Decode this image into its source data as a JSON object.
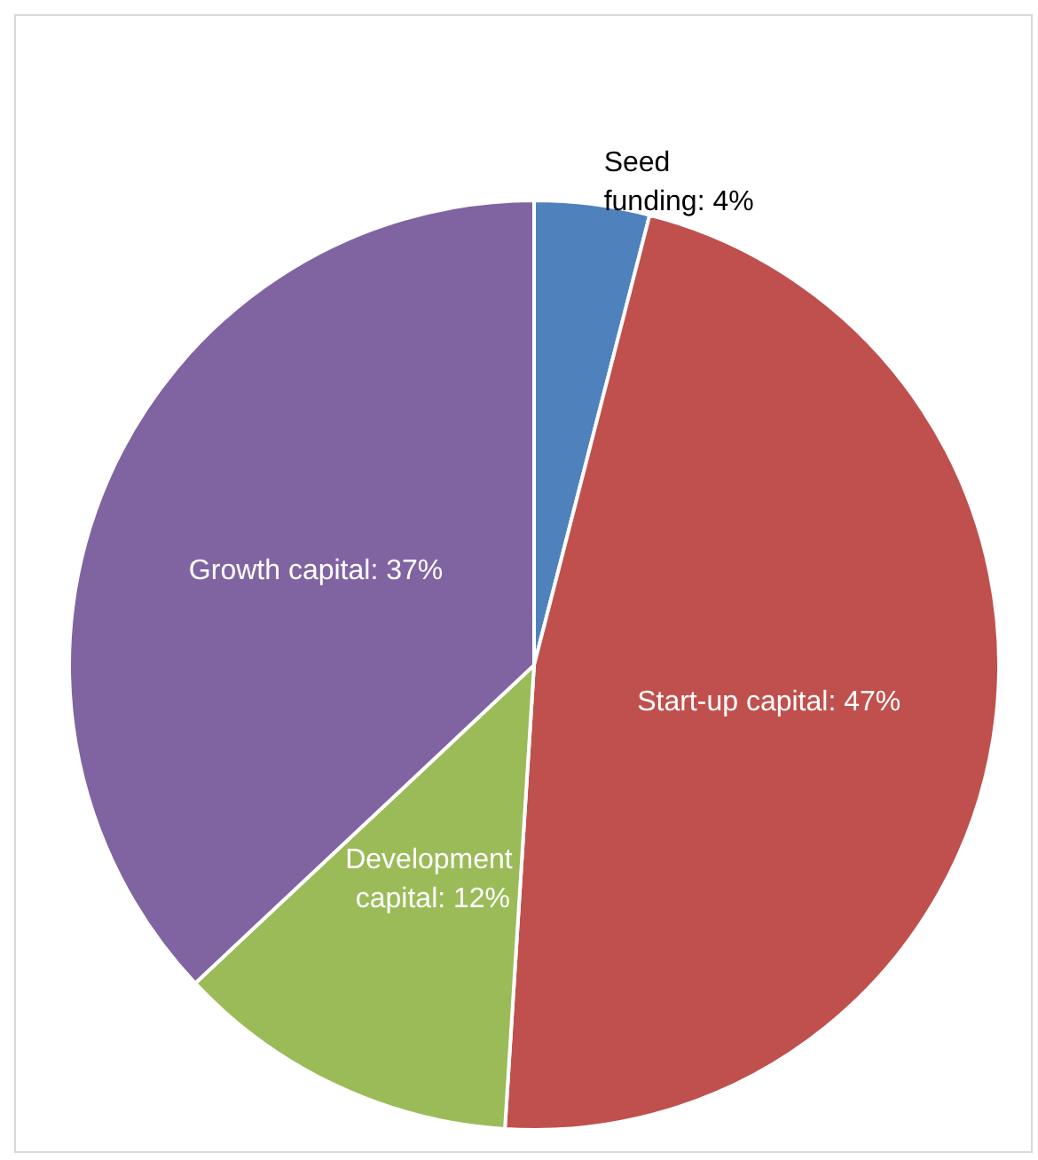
{
  "chart_data": {
    "type": "pie",
    "categories": [
      "Seed funding",
      "Start-up capital",
      "Development capital",
      "Growth capital"
    ],
    "values": [
      4,
      47,
      12,
      37
    ],
    "colors": [
      "#4f81bd",
      "#c0504d",
      "#9bbb59",
      "#8064a2"
    ],
    "value_labels": [
      "4%",
      "47%",
      "12%",
      "37%"
    ],
    "legend": false
  }
}
